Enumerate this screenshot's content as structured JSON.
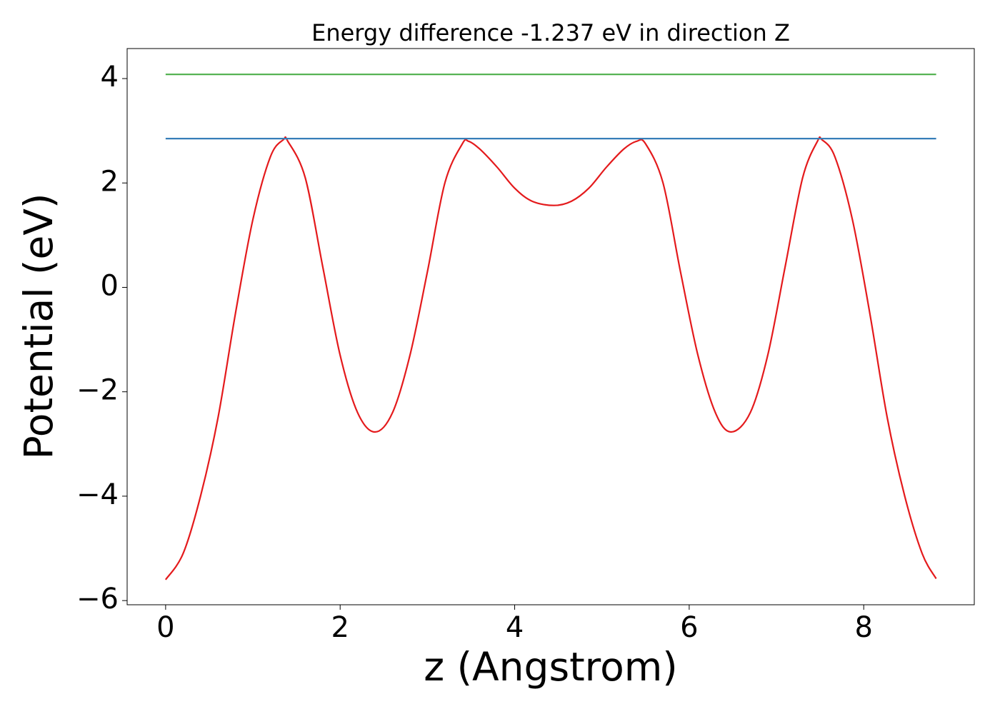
{
  "chart_data": {
    "type": "line",
    "title": "Energy difference -1.237 eV in direction Z",
    "xlabel": "z (Angstrom)",
    "ylabel": "Potential (eV)",
    "xlim": [
      -0.441,
      9.267
    ],
    "ylim": [
      -6.08,
      4.575
    ],
    "xticks": [
      0,
      2,
      4,
      6,
      8
    ],
    "yticks": [
      {
        "value": -6,
        "label": "−6"
      },
      {
        "value": -4,
        "label": "−4"
      },
      {
        "value": -2,
        "label": "−2"
      },
      0,
      2,
      4
    ],
    "series": [
      {
        "color": "#e41a1c",
        "x": [
          0,
          0.2,
          0.4,
          0.6,
          0.8,
          1.0,
          1.2,
          1.35,
          1.4,
          1.6,
          1.8,
          2.0,
          2.2,
          2.4,
          2.6,
          2.8,
          3.0,
          3.2,
          3.4,
          3.47,
          3.6,
          3.8,
          4.0,
          4.2,
          4.45,
          4.65,
          4.85,
          5.05,
          5.25,
          5.4,
          5.5,
          5.7,
          5.9,
          6.1,
          6.3,
          6.48,
          6.7,
          6.9,
          7.1,
          7.3,
          7.47,
          7.52,
          7.67,
          7.87,
          8.07,
          8.27,
          8.47,
          8.67,
          8.83
        ],
        "values": [
          -5.6,
          -5.1,
          -4.0,
          -2.5,
          -0.5,
          1.3,
          2.5,
          2.83,
          2.8,
          2.1,
          0.4,
          -1.3,
          -2.4,
          -2.77,
          -2.4,
          -1.3,
          0.3,
          2.0,
          2.75,
          2.8,
          2.65,
          2.3,
          1.9,
          1.65,
          1.57,
          1.65,
          1.9,
          2.3,
          2.65,
          2.8,
          2.75,
          2.0,
          0.3,
          -1.3,
          -2.4,
          -2.77,
          -2.4,
          -1.3,
          0.4,
          2.1,
          2.8,
          2.83,
          2.5,
          1.3,
          -0.5,
          -2.5,
          -4.0,
          -5.1,
          -5.58
        ]
      },
      {
        "color": "#377eb8",
        "x": [
          0,
          8.83
        ],
        "values": [
          2.85,
          2.85
        ]
      },
      {
        "color": "#4daf4a",
        "x": [
          0,
          8.83
        ],
        "values": [
          4.08,
          4.08
        ]
      }
    ]
  }
}
